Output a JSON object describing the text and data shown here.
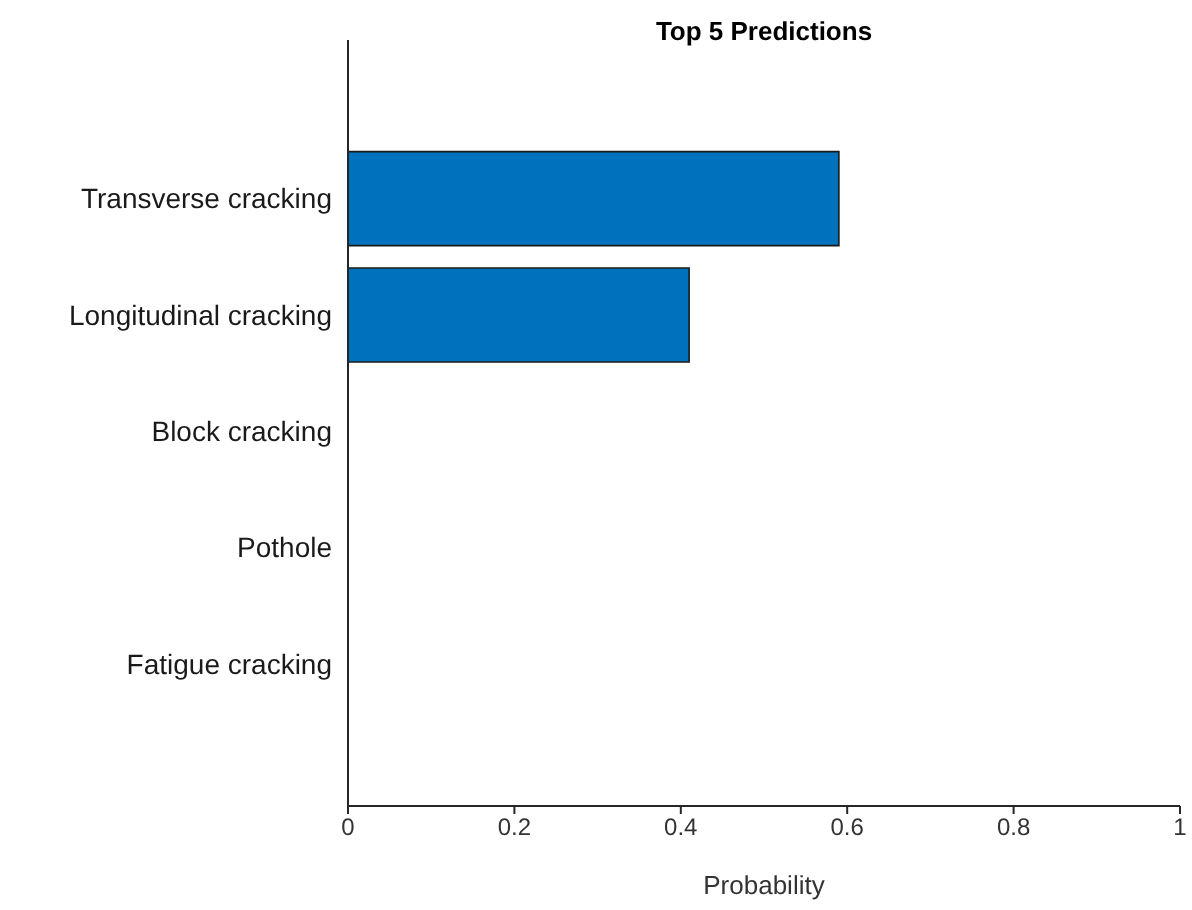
{
  "chart_data": {
    "type": "bar",
    "orientation": "horizontal",
    "title": "Top 5 Predictions",
    "xlabel": "Probability",
    "categories": [
      "Transverse cracking",
      "Longitudinal cracking",
      "Block cracking",
      "Pothole",
      "Fatigue cracking"
    ],
    "values": [
      0.59,
      0.41,
      0,
      0,
      0
    ],
    "color": "#0072bd",
    "xlim": [
      0,
      1
    ],
    "xticks": [
      0,
      0.2,
      0.4,
      0.6,
      0.8,
      1
    ],
    "grid": false,
    "legend": false
  }
}
